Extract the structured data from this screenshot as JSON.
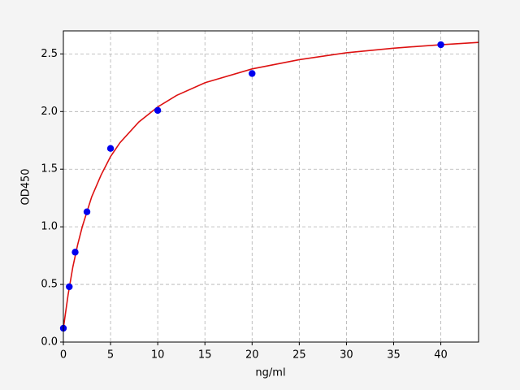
{
  "chart_data": {
    "type": "scatter",
    "xlabel": "ng/ml",
    "ylabel": "OD450",
    "xlim": [
      0,
      44
    ],
    "ylim": [
      0,
      2.7
    ],
    "xticks": [
      0,
      5,
      10,
      15,
      20,
      25,
      30,
      35,
      40
    ],
    "yticks": [
      {
        "value": 0,
        "label": "0.0"
      },
      0.5,
      {
        "value": 1,
        "label": "1.0"
      },
      1.5,
      {
        "value": 2,
        "label": "2.0"
      },
      2.5
    ],
    "grid": true,
    "series": [
      {
        "type": "line",
        "color": "#dd1111",
        "x": [
          0,
          0.5,
          1,
          1.5,
          2,
          3,
          4,
          5,
          6,
          8,
          10,
          12,
          15,
          20,
          25,
          30,
          35,
          40,
          44
        ],
        "values": [
          0.12,
          0.41,
          0.65,
          0.84,
          1.0,
          1.26,
          1.45,
          1.61,
          1.73,
          1.91,
          2.04,
          2.14,
          2.25,
          2.37,
          2.45,
          2.51,
          2.55,
          2.58,
          2.6
        ]
      },
      {
        "type": "scatter",
        "color": "#0000ee",
        "x": [
          0,
          0.625,
          1.25,
          2.5,
          5,
          10,
          20,
          40
        ],
        "values": [
          0.12,
          0.48,
          0.78,
          1.13,
          1.68,
          2.01,
          2.33,
          2.58
        ]
      }
    ]
  }
}
